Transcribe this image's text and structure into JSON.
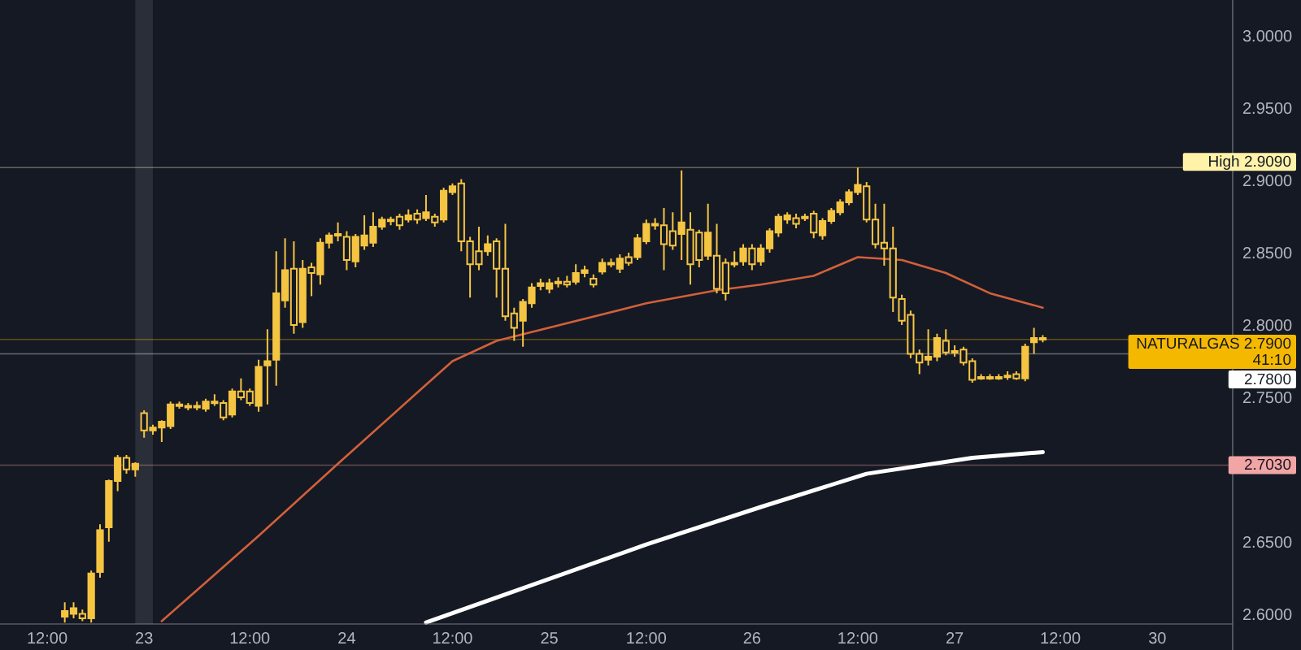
{
  "chart_data": {
    "type": "candlestick",
    "categories": [
      "12:00",
      null,
      null,
      null,
      null,
      null,
      null,
      null,
      null,
      null,
      null,
      "23",
      null,
      null,
      null,
      null,
      null,
      null,
      null,
      null,
      null,
      null,
      null,
      "12:00",
      null,
      null,
      null,
      null,
      null,
      null,
      null,
      null,
      null,
      null,
      "24",
      null,
      null,
      null,
      null,
      null,
      null,
      null,
      null,
      null,
      null,
      null,
      "12:00",
      null,
      null,
      null,
      null,
      null,
      null,
      null,
      null,
      null,
      null,
      "25",
      null,
      null,
      null,
      null,
      null,
      null,
      null,
      null,
      null,
      null,
      "12:00",
      null,
      null,
      null,
      null,
      null,
      null,
      null,
      null,
      null,
      null,
      null,
      "26",
      null,
      null,
      null,
      null,
      null,
      null,
      null,
      null,
      null,
      null,
      null,
      "12:00",
      null,
      null,
      null,
      null,
      null,
      null,
      null,
      null,
      null,
      null,
      "27",
      null,
      null,
      null,
      null,
      null,
      null,
      null,
      null,
      null,
      null,
      null,
      "12:00",
      null,
      null,
      null,
      null,
      null,
      null,
      null,
      null,
      null,
      null,
      "30",
      null,
      null,
      null,
      null,
      null,
      null,
      null,
      null
    ],
    "ohlc": [
      null,
      null,
      [
        2.598,
        2.608,
        2.594,
        2.602
      ],
      [
        2.6,
        2.608,
        2.597,
        2.604
      ],
      [
        2.6,
        2.603,
        2.595,
        2.597
      ],
      [
        2.597,
        2.63,
        2.594,
        2.628
      ],
      [
        2.629,
        2.662,
        2.625,
        2.658
      ],
      [
        2.66,
        2.693,
        2.65,
        2.692
      ],
      [
        2.692,
        2.71,
        2.685,
        2.708
      ],
      [
        2.708,
        2.71,
        2.697,
        2.7
      ],
      [
        2.7,
        2.705,
        2.695,
        2.704
      ],
      [
        2.739,
        2.741,
        2.722,
        2.727
      ],
      [
        2.727,
        2.731,
        2.724,
        2.729
      ],
      [
        2.729,
        2.734,
        2.719,
        2.733
      ],
      [
        2.73,
        2.747,
        2.728,
        2.745
      ],
      [
        2.745,
        2.747,
        2.742,
        2.744
      ],
      [
        2.744,
        2.746,
        2.741,
        2.744
      ],
      [
        2.744,
        2.747,
        2.741,
        2.743
      ],
      [
        2.742,
        2.749,
        2.74,
        2.747
      ],
      [
        2.747,
        2.752,
        2.744,
        2.747
      ],
      [
        2.746,
        2.748,
        2.734,
        2.736
      ],
      [
        2.738,
        2.756,
        2.736,
        2.754
      ],
      [
        2.754,
        2.763,
        2.748,
        2.75
      ],
      [
        2.754,
        2.756,
        2.744,
        2.746
      ],
      [
        2.744,
        2.776,
        2.74,
        2.771
      ],
      [
        2.772,
        2.797,
        2.745,
        2.775
      ],
      [
        2.776,
        2.851,
        2.758,
        2.822
      ],
      [
        2.817,
        2.86,
        2.812,
        2.838
      ],
      [
        2.839,
        2.858,
        2.794,
        2.8
      ],
      [
        2.802,
        2.845,
        2.798,
        2.839
      ],
      [
        2.84,
        2.843,
        2.82,
        2.836
      ],
      [
        2.835,
        2.86,
        2.828,
        2.857
      ],
      [
        2.857,
        2.864,
        2.853,
        2.862
      ],
      [
        2.862,
        2.871,
        2.858,
        2.863
      ],
      [
        2.861,
        2.865,
        2.838,
        2.845
      ],
      [
        2.844,
        2.863,
        2.84,
        2.861
      ],
      [
        2.855,
        2.876,
        2.852,
        2.862
      ],
      [
        2.857,
        2.878,
        2.854,
        2.868
      ],
      [
        2.868,
        2.875,
        2.866,
        2.873
      ],
      [
        2.873,
        2.875,
        2.869,
        2.872
      ],
      [
        2.875,
        2.877,
        2.866,
        2.869
      ],
      [
        2.873,
        2.88,
        2.871,
        2.876
      ],
      [
        2.877,
        2.88,
        2.87,
        2.873
      ],
      [
        2.874,
        2.89,
        2.872,
        2.878
      ],
      [
        2.875,
        2.877,
        2.868,
        2.871
      ],
      [
        2.873,
        2.895,
        2.871,
        2.893
      ],
      [
        2.892,
        2.898,
        2.89,
        2.896
      ],
      [
        2.898,
        2.901,
        2.851,
        2.858
      ],
      [
        2.858,
        2.861,
        2.819,
        2.842
      ],
      [
        2.851,
        2.868,
        2.838,
        2.842
      ],
      [
        2.851,
        2.862,
        2.848,
        2.856
      ],
      [
        2.858,
        2.86,
        2.819,
        2.839
      ],
      [
        2.839,
        2.87,
        2.803,
        2.806
      ],
      [
        2.808,
        2.812,
        2.789,
        2.798
      ],
      [
        2.803,
        2.818,
        2.785,
        2.816
      ],
      [
        2.815,
        2.829,
        2.812,
        2.826
      ],
      [
        2.827,
        2.832,
        2.824,
        2.829
      ],
      [
        2.825,
        2.832,
        2.822,
        2.829
      ],
      [
        2.829,
        2.833,
        2.826,
        2.83
      ],
      [
        2.83,
        2.834,
        2.826,
        2.828
      ],
      [
        2.83,
        2.842,
        2.828,
        2.836
      ],
      [
        2.836,
        2.841,
        2.833,
        2.838
      ],
      [
        2.832,
        2.835,
        2.826,
        2.828
      ],
      [
        2.837,
        2.846,
        2.835,
        2.843
      ],
      [
        2.843,
        2.846,
        2.84,
        2.843
      ],
      [
        2.839,
        2.849,
        2.836,
        2.846
      ],
      [
        2.847,
        2.85,
        2.841,
        2.843
      ],
      [
        2.847,
        2.863,
        2.845,
        2.86
      ],
      [
        2.858,
        2.873,
        2.856,
        2.87
      ],
      [
        2.87,
        2.874,
        2.866,
        2.87
      ],
      [
        2.869,
        2.881,
        2.838,
        2.856
      ],
      [
        2.865,
        2.878,
        2.852,
        2.855
      ],
      [
        2.863,
        2.907,
        2.845,
        2.871
      ],
      [
        2.866,
        2.878,
        2.828,
        2.842
      ],
      [
        2.864,
        2.866,
        2.84,
        2.845
      ],
      [
        2.848,
        2.884,
        2.845,
        2.864
      ],
      [
        2.848,
        2.87,
        2.822,
        2.825
      ],
      [
        2.843,
        2.846,
        2.817,
        2.822
      ],
      [
        2.843,
        2.851,
        2.84,
        2.843
      ],
      [
        2.844,
        2.856,
        2.841,
        2.853
      ],
      [
        2.853,
        2.856,
        2.838,
        2.842
      ],
      [
        2.844,
        2.856,
        2.841,
        2.853
      ],
      [
        2.853,
        2.867,
        2.85,
        2.865
      ],
      [
        2.864,
        2.877,
        2.861,
        2.875
      ],
      [
        2.873,
        2.878,
        2.87,
        2.876
      ],
      [
        2.874,
        2.877,
        2.867,
        2.87
      ],
      [
        2.875,
        2.877,
        2.872,
        2.875
      ],
      [
        2.877,
        2.879,
        2.86,
        2.864
      ],
      [
        2.862,
        2.874,
        2.859,
        2.872
      ],
      [
        2.872,
        2.881,
        2.87,
        2.879
      ],
      [
        2.878,
        2.887,
        2.876,
        2.885
      ],
      [
        2.885,
        2.894,
        2.883,
        2.892
      ],
      [
        2.892,
        2.909,
        2.89,
        2.897
      ],
      [
        2.896,
        2.899,
        2.871,
        2.873
      ],
      [
        2.873,
        2.884,
        2.853,
        2.856
      ],
      [
        2.857,
        2.884,
        2.841,
        2.853
      ],
      [
        2.853,
        2.868,
        2.809,
        2.819
      ],
      [
        2.818,
        2.821,
        2.8,
        2.803
      ],
      [
        2.807,
        2.81,
        2.777,
        2.78
      ],
      [
        2.78,
        2.783,
        2.766,
        2.774
      ],
      [
        2.776,
        2.797,
        2.772,
        2.778
      ],
      [
        2.778,
        2.794,
        2.775,
        2.791
      ],
      [
        2.789,
        2.797,
        2.779,
        2.781
      ],
      [
        2.782,
        2.786,
        2.778,
        2.781
      ],
      [
        2.783,
        2.785,
        2.772,
        2.774
      ],
      [
        2.775,
        2.777,
        2.76,
        2.762
      ],
      [
        2.763,
        2.766,
        2.762,
        2.764
      ],
      [
        2.764,
        2.766,
        2.762,
        2.764
      ],
      [
        2.764,
        2.766,
        2.762,
        2.764
      ],
      [
        2.764,
        2.768,
        2.762,
        2.765
      ],
      [
        2.766,
        2.768,
        2.762,
        2.763
      ],
      [
        2.763,
        2.787,
        2.761,
        2.785
      ],
      [
        2.788,
        2.798,
        2.78,
        2.791
      ],
      [
        2.791,
        2.793,
        2.788,
        2.79
      ],
      null,
      null,
      null,
      null,
      null,
      null,
      null,
      null,
      null,
      null,
      null,
      null,
      null,
      null,
      null,
      null,
      null,
      null,
      null,
      null,
      null
    ],
    "color": "#f5c542",
    "series": [
      {
        "type": "line",
        "color": "#d2603a",
        "values": [
          null,
          null,
          null,
          null,
          null,
          null,
          null,
          null,
          null,
          null,
          null,
          null,
          null,
          2.595,
          null,
          null,
          null,
          null,
          null,
          null,
          null,
          null,
          null,
          null,
          2.654,
          null,
          null,
          null,
          null,
          null,
          null,
          null,
          null,
          2.704,
          null,
          null,
          null,
          null,
          null,
          null,
          null,
          null,
          null,
          null,
          null,
          null,
          2.775,
          null,
          null,
          null,
          null,
          2.789,
          null,
          null,
          null,
          null,
          null,
          null,
          null,
          null,
          null,
          null,
          null,
          null,
          null,
          null,
          null,
          null,
          2.815,
          null,
          null,
          null,
          null,
          null,
          null,
          null,
          2.824,
          null,
          null,
          null,
          null,
          2.828,
          null,
          null,
          null,
          null,
          null,
          2.834,
          null,
          null,
          null,
          null,
          2.847,
          null,
          null,
          null,
          null,
          2.845,
          null,
          null,
          null,
          null,
          2.836,
          null,
          null,
          null,
          null,
          2.822,
          null,
          null,
          null,
          null,
          null,
          2.812,
          null,
          null,
          null,
          null,
          null,
          null,
          null,
          null,
          null,
          null,
          null,
          null,
          null,
          null,
          null,
          null,
          null,
          null,
          null,
          null,
          null
        ]
      },
      {
        "type": "line",
        "color": "#ffffff",
        "values": [
          null,
          null,
          null,
          null,
          null,
          null,
          null,
          null,
          null,
          null,
          null,
          null,
          null,
          null,
          null,
          null,
          null,
          null,
          null,
          null,
          null,
          null,
          null,
          null,
          null,
          null,
          null,
          null,
          null,
          null,
          null,
          null,
          null,
          null,
          null,
          null,
          null,
          null,
          null,
          null,
          null,
          null,
          null,
          2.594,
          null,
          null,
          null,
          null,
          null,
          null,
          null,
          null,
          null,
          null,
          null,
          null,
          null,
          null,
          null,
          null,
          null,
          null,
          null,
          null,
          null,
          null,
          null,
          null,
          2.648,
          null,
          null,
          null,
          null,
          null,
          null,
          null,
          null,
          null,
          null,
          null,
          null,
          2.674,
          null,
          null,
          null,
          null,
          null,
          null,
          null,
          null,
          null,
          null,
          null,
          2.697,
          null,
          null,
          null,
          null,
          null,
          null,
          null,
          null,
          null,
          null,
          null,
          2.708,
          null,
          null,
          null,
          null,
          null,
          null,
          null,
          2.712,
          null,
          null,
          null,
          null,
          null,
          null,
          null,
          null,
          null,
          null,
          null,
          null,
          null,
          null,
          null,
          null,
          null,
          null,
          null,
          null,
          null
        ]
      }
    ],
    "ref_lines": [
      {
        "axis": "y",
        "value": 2.909,
        "label": "High 2.9090",
        "color": "#fff3a8"
      },
      {
        "axis": "y",
        "value": 2.79,
        "label": "NATURALGAS 2.7900",
        "color": "#f5b800"
      },
      {
        "axis": "y",
        "value": 2.78,
        "label": "2.7800",
        "color": "#ffffff"
      },
      {
        "axis": "y",
        "value": 2.703,
        "label": "2.7030",
        "color": "#f2a5a5"
      }
    ],
    "bands": [
      {
        "axis": "x",
        "from": "23",
        "to": "23",
        "color": "#2a2e39"
      }
    ],
    "annotations": [
      "41:10"
    ],
    "ylim": [
      2.593,
      3.025
    ],
    "yticks": [
      {
        "value": 2.6,
        "label": "2.6000"
      },
      {
        "value": 2.65,
        "label": "2.6500"
      },
      {
        "value": 2.75,
        "label": "2.7500"
      },
      {
        "value": 2.8,
        "label": "2.8000"
      },
      {
        "value": 2.85,
        "label": "2.8500"
      },
      {
        "value": 2.9,
        "label": "2.9000"
      },
      {
        "value": 2.95,
        "label": "2.9500"
      },
      {
        "value": 3.0,
        "label": "3.0000"
      }
    ]
  }
}
